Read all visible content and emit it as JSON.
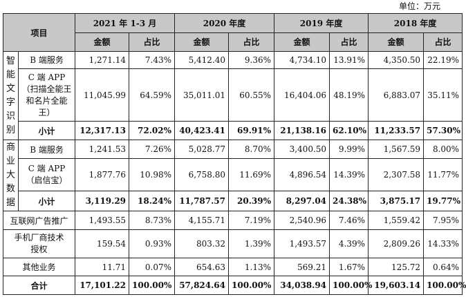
{
  "unit_label": "单位：万元",
  "header": {
    "item": "项目",
    "periods": [
      "2021 年 1-3 月",
      "2020 年度",
      "2019 年度",
      "2018 年度"
    ],
    "amount": "金额",
    "ratio": "占比"
  },
  "groups": [
    {
      "name": "智能文字识别",
      "rows": [
        {
          "label": "B 端服务",
          "values": [
            "1,271.14",
            "7.43%",
            "5,412.40",
            "9.36%",
            "4,734.10",
            "13.91%",
            "4,350.50",
            "22.19%"
          ]
        },
        {
          "label": "C 端 APP（扫描全能王和名片全能王）",
          "values": [
            "11,045.99",
            "64.59%",
            "35,011.01",
            "60.55%",
            "16,404.06",
            "48.19%",
            "6,883.07",
            "35.11%"
          ]
        }
      ],
      "subtotal": {
        "label": "小计",
        "values": [
          "12,317.13",
          "72.02%",
          "40,423.41",
          "69.91%",
          "21,138.16",
          "62.10%",
          "11,233.57",
          "57.30%"
        ]
      }
    },
    {
      "name": "商业大数据",
      "rows": [
        {
          "label": "B 端服务",
          "values": [
            "1,241.53",
            "7.26%",
            "5,028.77",
            "8.70%",
            "3,400.50",
            "9.99%",
            "1,567.59",
            "8.00%"
          ]
        },
        {
          "label": "C 端 APP（启信宝）",
          "values": [
            "1,877.76",
            "10.98%",
            "6,758.80",
            "11.69%",
            "4,896.54",
            "14.39%",
            "2,307.58",
            "11.77%"
          ]
        }
      ],
      "subtotal": {
        "label": "小计",
        "values": [
          "3,119.29",
          "18.24%",
          "11,787.57",
          "20.39%",
          "8,297.04",
          "24.38%",
          "3,875.17",
          "19.77%"
        ]
      }
    }
  ],
  "other_rows": [
    {
      "label": "互联网广告推广",
      "values": [
        "1,493.55",
        "8.73%",
        "4,155.71",
        "7.19%",
        "2,540.96",
        "7.46%",
        "1,559.42",
        "7.95%"
      ]
    },
    {
      "label": "手机厂商技术授权",
      "values": [
        "159.54",
        "0.93%",
        "803.32",
        "1.39%",
        "1,493.57",
        "4.39%",
        "2,809.26",
        "14.33%"
      ]
    },
    {
      "label": "其他业务",
      "values": [
        "11.71",
        "0.07%",
        "654.63",
        "1.13%",
        "569.21",
        "1.67%",
        "125.72",
        "0.64%"
      ]
    }
  ],
  "total": {
    "label": "合计",
    "values": [
      "17,101.22",
      "100.00%",
      "57,824.64",
      "100.00%",
      "34,038.94",
      "100.00%",
      "19,603.14",
      "100.00%"
    ]
  }
}
